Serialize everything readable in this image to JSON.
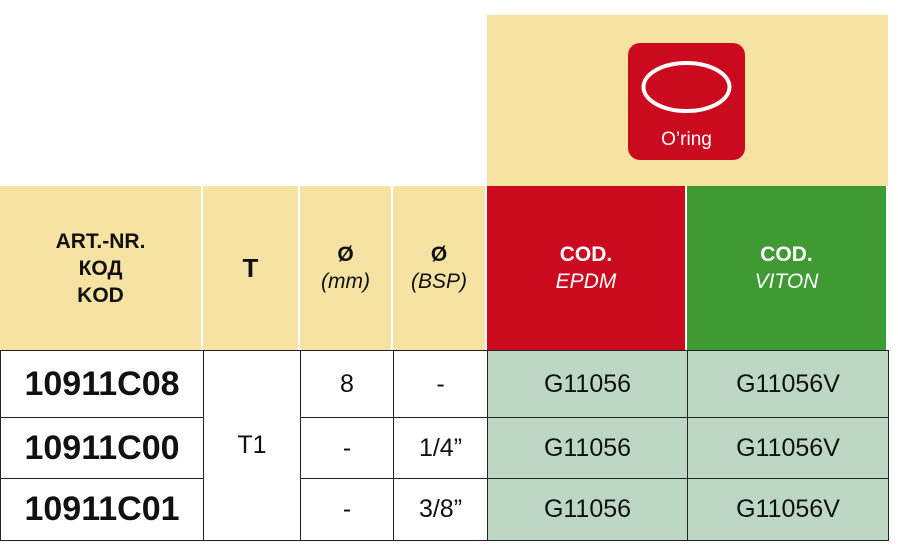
{
  "icon_label": "O’ring",
  "header": [
    {
      "main": [
        "ART.-NR.",
        "КОД",
        "KOD"
      ]
    },
    {
      "main": [
        "T"
      ]
    },
    {
      "main": [
        "Ø"
      ],
      "sub": "(mm)"
    },
    {
      "main": [
        "Ø"
      ],
      "sub": "(BSP)"
    },
    {
      "main": [
        "COD."
      ],
      "sub": "EPDM"
    },
    {
      "main": [
        "COD."
      ],
      "sub": "VITON"
    }
  ],
  "t_value": "T1",
  "rows": [
    {
      "art": "10911C08",
      "mm": "8",
      "bsp": "-",
      "epdm": "G11056",
      "viton": "G11056V"
    },
    {
      "art": "10911C00",
      "mm": "-",
      "bsp": "1/4”",
      "epdm": "G11056",
      "viton": "G11056V"
    },
    {
      "art": "10911C01",
      "mm": "-",
      "bsp": "3/8”",
      "epdm": "G11056",
      "viton": "G11056V"
    }
  ]
}
